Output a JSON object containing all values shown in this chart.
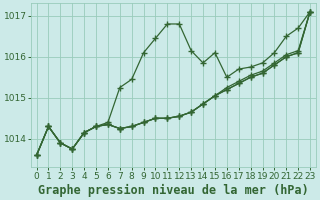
{
  "title": "Graphe pression niveau de la mer (hPa)",
  "bg_color": "#cceae8",
  "line_color": "#336633",
  "grid_color": "#99ccbb",
  "ylim": [
    1013.3,
    1017.3
  ],
  "xlim": [
    -0.5,
    23.5
  ],
  "yticks": [
    1014,
    1015,
    1016,
    1017
  ],
  "xticks": [
    0,
    1,
    2,
    3,
    4,
    5,
    6,
    7,
    8,
    9,
    10,
    11,
    12,
    13,
    14,
    15,
    16,
    17,
    18,
    19,
    20,
    21,
    22,
    23
  ],
  "series_peak": [
    1013.6,
    1014.3,
    1013.9,
    1013.75,
    1014.15,
    1014.3,
    1014.4,
    1015.25,
    1015.45,
    1016.1,
    1016.45,
    1016.8,
    1016.8,
    1016.15,
    1015.85,
    1016.1,
    1015.5,
    1015.7,
    1015.75,
    1015.85,
    1016.1,
    1016.5,
    1016.7,
    1017.1
  ],
  "series_lin1": [
    1013.6,
    1014.3,
    1013.9,
    1013.75,
    1014.15,
    1014.3,
    1014.35,
    1014.25,
    1014.3,
    1014.4,
    1014.5,
    1014.5,
    1014.55,
    1014.65,
    1014.85,
    1015.05,
    1015.25,
    1015.4,
    1015.55,
    1015.65,
    1015.85,
    1016.05,
    1016.15,
    1017.1
  ],
  "series_lin2": [
    1013.6,
    1014.3,
    1013.9,
    1013.75,
    1014.15,
    1014.3,
    1014.35,
    1014.25,
    1014.3,
    1014.4,
    1014.5,
    1014.5,
    1014.55,
    1014.65,
    1014.85,
    1015.05,
    1015.2,
    1015.35,
    1015.5,
    1015.6,
    1015.8,
    1016.0,
    1016.1,
    1017.1
  ],
  "series_lin3": [
    1013.6,
    1014.3,
    1013.9,
    1013.75,
    1014.15,
    1014.3,
    1014.35,
    1014.25,
    1014.3,
    1014.4,
    1014.5,
    1014.5,
    1014.55,
    1014.65,
    1014.85,
    1015.05,
    1015.2,
    1015.35,
    1015.5,
    1015.6,
    1015.8,
    1016.0,
    1016.1,
    1017.1
  ],
  "marker": "+",
  "markersize": 4,
  "linewidth": 0.9,
  "title_fontsize": 8.5,
  "tick_fontsize": 6.5
}
